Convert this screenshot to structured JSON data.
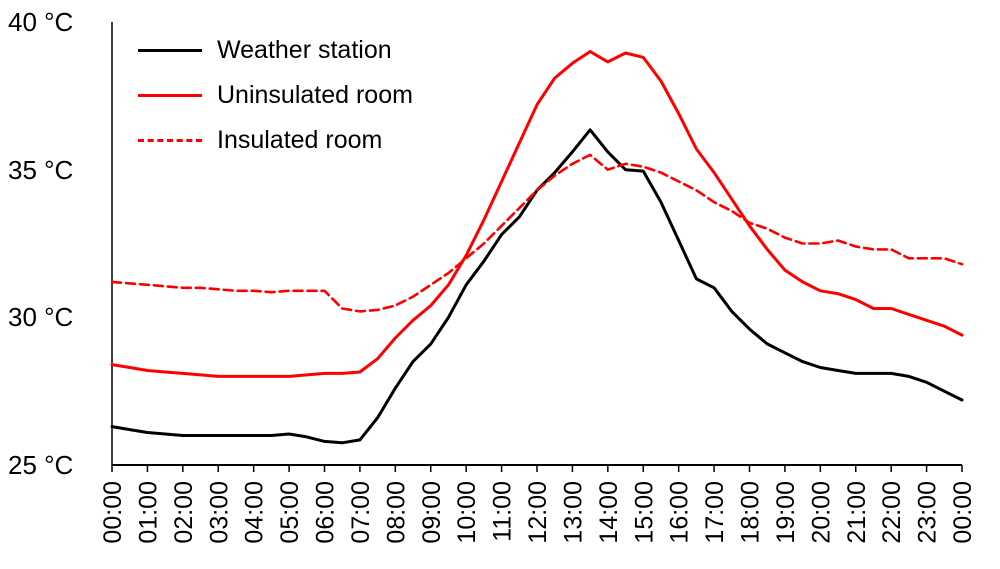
{
  "chart_data": {
    "type": "line",
    "title": "",
    "xlabel": "",
    "ylabel": "",
    "grid": false,
    "legend_position": "top-left",
    "xlim": [
      0,
      24
    ],
    "ylim": [
      25,
      40
    ],
    "x_hours": [
      0,
      0.5,
      1,
      1.5,
      2,
      2.5,
      3,
      3.5,
      4,
      4.5,
      5,
      5.5,
      6,
      6.5,
      7,
      7.5,
      8,
      8.5,
      9,
      9.5,
      10,
      10.5,
      11,
      11.5,
      12,
      12.5,
      13,
      13.5,
      14,
      14.5,
      15,
      15.5,
      16,
      16.5,
      17,
      17.5,
      18,
      18.5,
      19,
      19.5,
      20,
      20.5,
      21,
      21.5,
      22,
      22.5,
      23,
      23.5,
      24
    ],
    "x_tick_labels": [
      "00:00",
      "01:00",
      "02:00",
      "03:00",
      "04:00",
      "05:00",
      "06:00",
      "07:00",
      "08:00",
      "09:00",
      "10:00",
      "11:00",
      "12:00",
      "13:00",
      "14:00",
      "15:00",
      "16:00",
      "17:00",
      "18:00",
      "19:00",
      "20:00",
      "21:00",
      "22:00",
      "23:00",
      "00:00"
    ],
    "y_ticks": [
      {
        "value": 40,
        "label": "40 °C"
      },
      {
        "value": 35,
        "label": "35 °C"
      },
      {
        "value": 30,
        "label": "30 °C"
      },
      {
        "value": 25,
        "label": "25 °C"
      }
    ],
    "series": [
      {
        "name": "Weather station",
        "color": "#000000",
        "style": "solid",
        "values": [
          26.3,
          26.2,
          26.1,
          26.05,
          26.0,
          26.0,
          26.0,
          26.0,
          26.0,
          26.0,
          26.05,
          25.95,
          25.8,
          25.75,
          25.85,
          26.6,
          27.6,
          28.5,
          29.1,
          30.0,
          31.1,
          31.9,
          32.8,
          33.4,
          34.3,
          34.9,
          35.6,
          36.35,
          35.6,
          35.0,
          34.95,
          33.9,
          32.6,
          31.3,
          31.0,
          30.2,
          29.6,
          29.1,
          28.8,
          28.5,
          28.3,
          28.2,
          28.1,
          28.1,
          28.1,
          28.0,
          27.8,
          27.5,
          27.2
        ]
      },
      {
        "name": "Uninsulated room",
        "color": "#ff0000",
        "style": "solid",
        "values": [
          28.4,
          28.3,
          28.2,
          28.15,
          28.1,
          28.05,
          28.0,
          28.0,
          28.0,
          28.0,
          28.0,
          28.05,
          28.1,
          28.1,
          28.15,
          28.6,
          29.3,
          29.9,
          30.4,
          31.1,
          32.1,
          33.3,
          34.6,
          35.9,
          37.2,
          38.1,
          38.6,
          39.0,
          38.65,
          38.95,
          38.8,
          38.0,
          36.9,
          35.7,
          34.9,
          34.0,
          33.1,
          32.3,
          31.6,
          31.2,
          30.9,
          30.8,
          30.6,
          30.3,
          30.3,
          30.1,
          29.9,
          29.7,
          29.4
        ]
      },
      {
        "name": "Insulated room",
        "color": "#ff0000",
        "style": "dashed",
        "values": [
          31.2,
          31.15,
          31.1,
          31.05,
          31.0,
          31.0,
          30.95,
          30.9,
          30.9,
          30.85,
          30.9,
          30.9,
          30.9,
          30.3,
          30.2,
          30.25,
          30.4,
          30.7,
          31.1,
          31.5,
          32.0,
          32.5,
          33.1,
          33.7,
          34.3,
          34.8,
          35.2,
          35.5,
          35.0,
          35.2,
          35.1,
          34.9,
          34.6,
          34.3,
          33.9,
          33.6,
          33.2,
          33.0,
          32.7,
          32.5,
          32.5,
          32.6,
          32.4,
          32.3,
          32.3,
          32.0,
          32.0,
          32.0,
          31.8
        ]
      }
    ]
  }
}
